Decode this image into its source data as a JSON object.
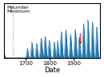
{
  "chart_data": {
    "type": "area",
    "title": "",
    "xlabel": "Date",
    "ylabel": "",
    "xlim": [
      1610,
      2010
    ],
    "ylim": [
      0,
      220
    ],
    "xticks": [
      1700,
      1800,
      1900
    ],
    "yticks": [],
    "tick_labels": "x",
    "grid": false,
    "x": [
      1610,
      1611,
      1612,
      1613,
      1614,
      1615,
      1616,
      1617,
      1618,
      1619,
      1620,
      1621,
      1622,
      1623,
      1624,
      1625,
      1626,
      1627,
      1628,
      1629,
      1630,
      1631,
      1632,
      1633,
      1634,
      1635,
      1636,
      1637,
      1638,
      1639,
      1640,
      1641,
      1642,
      1643,
      1644,
      1645,
      1646,
      1647,
      1648,
      1649,
      1650,
      1651,
      1652,
      1653,
      1654,
      1655,
      1656,
      1657,
      1658,
      1659,
      1660,
      1661,
      1662,
      1663,
      1664,
      1665,
      1666,
      1667,
      1668,
      1669,
      1670,
      1671,
      1672,
      1673,
      1674,
      1675,
      1676,
      1677,
      1678,
      1679,
      1680,
      1681,
      1682,
      1683,
      1684,
      1685,
      1686,
      1687,
      1688,
      1689,
      1690,
      1691,
      1692,
      1693,
      1694,
      1695,
      1696,
      1697,
      1698,
      1699,
      1700,
      1701,
      1702,
      1703,
      1704,
      1705,
      1706,
      1707,
      1708,
      1709,
      1710,
      1711,
      1712,
      1713,
      1714,
      1715,
      1716,
      1717,
      1718,
      1719,
      1720,
      1721,
      1722,
      1723,
      1724,
      1725,
      1726,
      1727,
      1728,
      1729,
      1730,
      1731,
      1732,
      1733,
      1734,
      1735,
      1736,
      1737,
      1738,
      1739,
      1740,
      1741,
      1742,
      1743,
      1744,
      1745,
      1746,
      1747,
      1748,
      1749,
      1750,
      1751,
      1752,
      1753,
      1754,
      1755,
      1756,
      1757,
      1758,
      1759,
      1760,
      1761,
      1762,
      1763,
      1764,
      1765,
      1766,
      1767,
      1768,
      1769,
      1770,
      1771,
      1772,
      1773,
      1774,
      1775,
      1776,
      1777,
      1778,
      1779,
      1780,
      1781,
      1782,
      1783,
      1784,
      1785,
      1786,
      1787,
      1788,
      1789,
      1790,
      1791,
      1792,
      1793,
      1794,
      1795,
      1796,
      1797,
      1798,
      1799,
      1800,
      1801,
      1802,
      1803,
      1804,
      1805,
      1806,
      1807,
      1808,
      1809,
      1810,
      1811,
      1812,
      1813,
      1814,
      1815,
      1816,
      1817,
      1818,
      1819,
      1820,
      1821,
      1822,
      1823,
      1824,
      1825,
      1826,
      1827,
      1828,
      1829,
      1830,
      1831,
      1832,
      1833,
      1834,
      1835,
      1836,
      1837,
      1838,
      1839,
      1840,
      1841,
      1842,
      1843,
      1844,
      1845,
      1846,
      1847,
      1848,
      1849,
      1850,
      1851,
      1852,
      1853,
      1854,
      1855,
      1856,
      1857,
      1858,
      1859,
      1860,
      1861,
      1862,
      1863,
      1864,
      1865,
      1866,
      1867,
      1868,
      1869,
      1870,
      1871,
      1872,
      1873,
      1874,
      1875,
      1876,
      1877,
      1878,
      1879,
      1880,
      1881,
      1882,
      1883,
      1884,
      1885,
      1886,
      1887,
      1888,
      1889,
      1890,
      1891,
      1892,
      1893,
      1894,
      1895,
      1896,
      1897,
      1898,
      1899,
      1900,
      1901,
      1902,
      1903,
      1904,
      1905,
      1906,
      1907,
      1908,
      1909,
      1910,
      1911,
      1912,
      1913,
      1914,
      1915,
      1916,
      1917,
      1918,
      1919,
      1920,
      1921,
      1922,
      1923,
      1924,
      1925,
      1926,
      1927,
      1928,
      1929,
      1930,
      1931,
      1932,
      1933,
      1934,
      1935,
      1936,
      1937,
      1938,
      1939,
      1940,
      1941,
      1942,
      1943,
      1944,
      1945,
      1946,
      1947,
      1948,
      1949,
      1950,
      1951,
      1952,
      1953,
      1954,
      1955,
      1956,
      1957,
      1958,
      1959,
      1960,
      1961,
      1962,
      1963,
      1964,
      1965,
      1966,
      1967,
      1968,
      1969,
      1970,
      1971,
      1972,
      1973,
      1974,
      1975,
      1976,
      1977,
      1978,
      1979,
      1980,
      1981,
      1982,
      1983,
      1984,
      1985,
      1986,
      1987,
      1988,
      1989,
      1990,
      1991,
      1992,
      1993,
      1994,
      1995,
      1996,
      1997,
      1998,
      1999,
      2000,
      2001,
      2002,
      2003,
      2004,
      2005,
      2006,
      2007,
      2008
    ],
    "values": [
      0,
      5,
      8,
      10,
      8,
      5,
      2,
      1,
      0,
      0,
      0,
      0,
      0,
      0,
      0,
      0,
      0,
      0,
      0,
      0,
      0,
      0,
      0,
      0,
      0,
      0,
      0,
      0,
      0,
      0,
      0,
      0,
      0,
      0,
      0,
      0,
      0,
      0,
      0,
      0,
      0,
      0,
      0,
      0,
      0,
      0,
      0,
      0,
      0,
      0,
      0,
      0,
      0,
      0,
      0,
      0,
      0,
      0,
      0,
      0,
      0,
      0,
      0,
      0,
      0,
      0,
      0,
      0,
      1,
      2,
      2,
      2,
      1,
      0,
      0,
      0,
      0,
      0,
      0,
      0,
      0,
      0,
      0,
      0,
      0,
      0,
      0,
      0,
      0,
      0,
      2,
      5,
      8,
      12,
      18,
      25,
      32,
      38,
      35,
      28,
      22,
      15,
      10,
      6,
      3,
      1,
      0,
      0,
      0,
      2,
      6,
      14,
      26,
      38,
      50,
      58,
      62,
      60,
      52,
      42,
      32,
      22,
      14,
      8,
      4,
      2,
      1,
      0,
      0,
      2,
      6,
      14,
      24,
      36,
      48,
      56,
      58,
      54,
      46,
      36,
      26,
      18,
      12,
      7,
      4,
      2,
      1,
      3,
      7,
      15,
      26,
      40,
      54,
      66,
      74,
      78,
      76,
      68,
      56,
      44,
      32,
      22,
      14,
      8,
      5,
      8,
      16,
      30,
      48,
      64,
      76,
      84,
      86,
      80,
      68,
      54,
      40,
      28,
      18,
      10,
      5,
      2,
      4,
      10,
      20,
      34,
      48,
      60,
      68,
      70,
      66,
      58,
      46,
      34,
      24,
      15,
      8,
      4,
      2,
      0,
      0,
      0,
      1,
      3,
      8,
      16,
      28,
      42,
      54,
      62,
      64,
      58,
      48,
      36,
      24,
      15,
      8,
      5,
      8,
      16,
      30,
      46,
      60,
      68,
      66,
      58,
      46,
      32,
      20,
      12,
      6,
      3,
      5,
      12,
      26,
      46,
      68,
      88,
      100,
      106,
      100,
      88,
      72,
      56,
      40,
      26,
      16,
      8,
      4,
      2,
      3,
      8,
      18,
      34,
      54,
      74,
      92,
      106,
      112,
      108,
      96,
      80,
      62,
      46,
      32,
      20,
      12,
      6,
      3,
      1,
      2,
      6,
      14,
      28,
      46,
      64,
      80,
      90,
      94,
      88,
      76,
      62,
      46,
      32,
      20,
      12,
      6,
      3,
      1,
      2,
      6,
      14,
      28,
      48,
      70,
      90,
      106,
      114,
      112,
      102,
      88,
      70,
      52,
      36,
      22,
      12,
      6,
      3,
      5,
      12,
      26,
      44,
      62,
      76,
      82,
      80,
      70,
      58,
      44,
      30,
      18,
      10,
      5,
      2,
      1,
      4,
      12,
      28,
      52,
      80,
      106,
      126,
      136,
      130,
      116,
      98,
      78,
      58,
      40,
      26,
      15,
      8,
      4,
      3,
      5,
      14,
      34,
      68,
      108,
      140,
      152,
      148,
      132,
      110,
      86,
      62,
      42,
      26,
      14,
      7,
      3,
      2,
      4,
      12,
      28,
      52,
      82,
      112,
      132,
      142,
      138,
      124,
      104,
      82,
      60,
      40,
      24,
      12,
      5,
      2,
      4,
      12,
      28,
      52,
      80,
      106,
      120,
      124,
      116,
      100,
      80,
      60,
      42,
      28,
      16,
      8,
      4,
      2,
      1
    ],
    "color": "#1f77b4",
    "reference_lines": [
      {
        "x": 1645,
        "line_style": "dotted",
        "color": "#ff7f0e"
      }
    ],
    "annotations": [
      {
        "text": "Maunder\nMinimum"
      },
      {
        "type": "arrow",
        "x": 1928,
        "y": 44,
        "color": "red"
      }
    ]
  }
}
